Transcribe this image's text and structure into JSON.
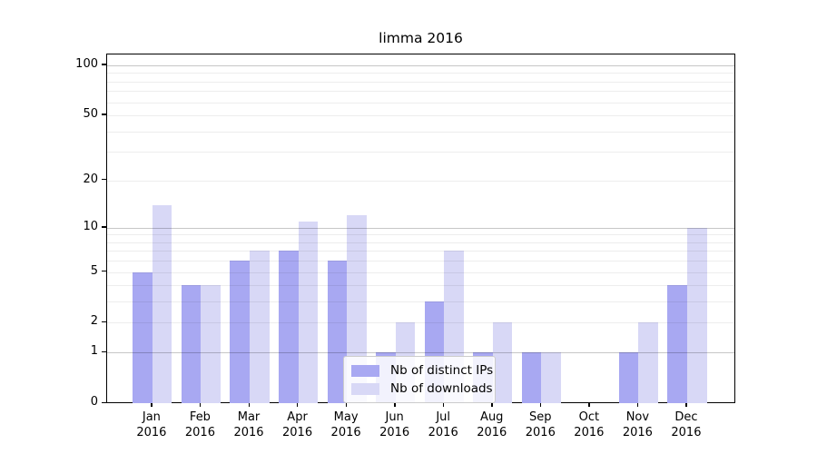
{
  "chart_data": {
    "type": "bar",
    "title": "limma 2016",
    "categories": [
      {
        "month": "Jan",
        "year": "2016"
      },
      {
        "month": "Feb",
        "year": "2016"
      },
      {
        "month": "Mar",
        "year": "2016"
      },
      {
        "month": "Apr",
        "year": "2016"
      },
      {
        "month": "May",
        "year": "2016"
      },
      {
        "month": "Jun",
        "year": "2016"
      },
      {
        "month": "Jul",
        "year": "2016"
      },
      {
        "month": "Aug",
        "year": "2016"
      },
      {
        "month": "Sep",
        "year": "2016"
      },
      {
        "month": "Oct",
        "year": "2016"
      },
      {
        "month": "Nov",
        "year": "2016"
      },
      {
        "month": "Dec",
        "year": "2016"
      }
    ],
    "series": [
      {
        "name": "Nb of distinct IPs",
        "color": "#a8a8f2",
        "values": [
          5,
          4,
          6,
          7,
          6,
          1,
          3,
          1,
          1,
          0,
          1,
          4
        ]
      },
      {
        "name": "Nb of downloads",
        "color": "#d8d8f6",
        "values": [
          14,
          4,
          7,
          11,
          12,
          2,
          7,
          2,
          1,
          0,
          2,
          10
        ]
      }
    ],
    "xlabel": "",
    "ylabel": "",
    "y_scale": "log10(value+1)",
    "y_ticks": [
      0,
      1,
      2,
      5,
      10,
      20,
      50,
      100
    ],
    "y_major_gridlines": [
      1,
      10,
      100
    ],
    "y_minor_gridlines": [
      2,
      3,
      4,
      5,
      6,
      7,
      8,
      9,
      20,
      30,
      40,
      50,
      60,
      70,
      80,
      90
    ],
    "ylim": [
      0,
      116
    ],
    "grid": "horizontal",
    "legend_position": "inside-bottom-center",
    "frame": "full-box",
    "colors": {
      "axis": "#000000",
      "major_grid": "#c9c9c9",
      "minor_grid": "#ededed",
      "background": "#ffffff"
    }
  }
}
